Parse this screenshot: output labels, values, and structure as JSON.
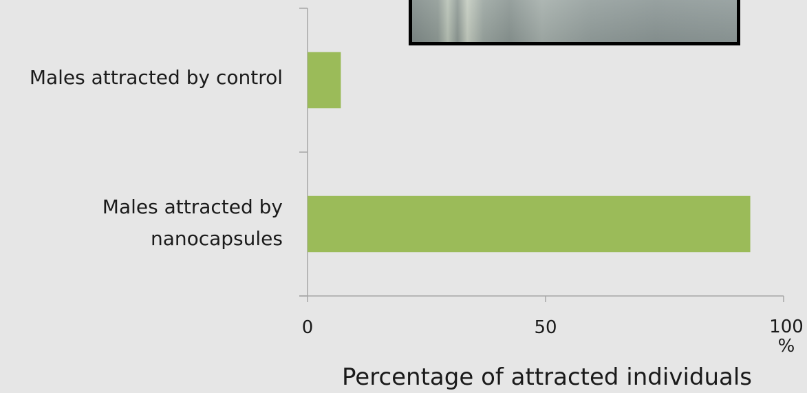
{
  "chart_data": {
    "type": "bar",
    "orientation": "horizontal",
    "categories": [
      [
        "Males attracted by control"
      ],
      [
        "Males attracted by",
        "nanocapsules"
      ]
    ],
    "values": [
      7,
      93
    ],
    "xlim": [
      0,
      100
    ],
    "xticks": [
      "0",
      "50",
      "100"
    ],
    "x_unit": "%",
    "xlabel": "Percentage of attracted individuals",
    "ylabel": "",
    "title": "",
    "grid": false,
    "legend": "none",
    "bar_color": "#9bbb59",
    "axis_color": "#a6a6a6"
  }
}
